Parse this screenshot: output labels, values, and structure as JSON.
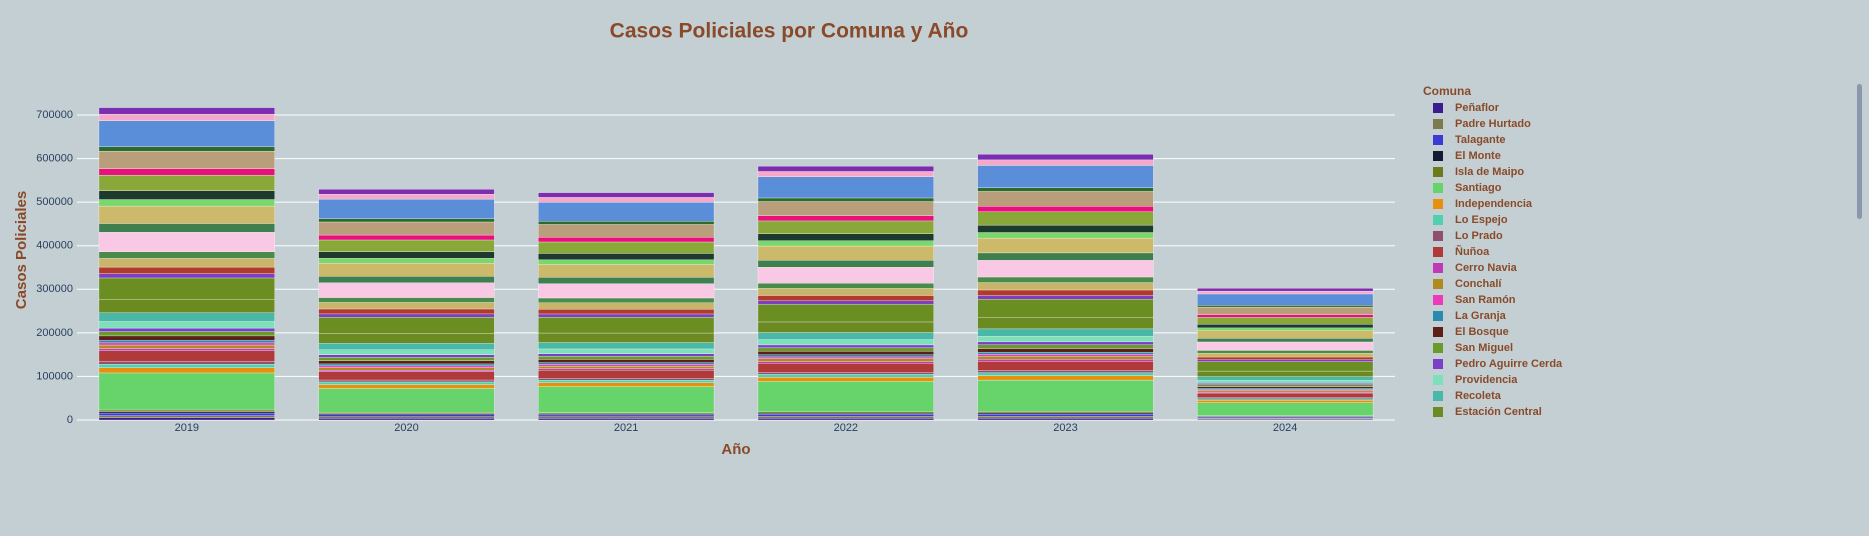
{
  "chart_data": {
    "type": "bar",
    "stacked": true,
    "title": "Casos Policiales por Comuna y Año",
    "x_label": "Año",
    "y_label": "Casos Policiales",
    "legend_title": "Comuna",
    "categories": [
      "2019",
      "2020",
      "2021",
      "2022",
      "2023",
      "2024"
    ],
    "ylim": [
      0,
      745000
    ],
    "yticks": [
      0,
      100000,
      200000,
      300000,
      400000,
      500000,
      600000,
      700000
    ],
    "grid": true,
    "series": [
      {
        "name": "Peñaflor",
        "color": "#3b1c8c",
        "values": [
          5000,
          3800,
          3700,
          4100,
          4300,
          2200
        ]
      },
      {
        "name": "Padre Hurtado",
        "color": "#7d7a4e",
        "values": [
          5000,
          3700,
          3600,
          4000,
          4200,
          2100
        ]
      },
      {
        "name": "Talagante",
        "color": "#3a3ad6",
        "values": [
          6000,
          4500,
          4400,
          4900,
          5100,
          2600
        ]
      },
      {
        "name": "El Monte",
        "color": "#141b33",
        "values": [
          3000,
          2300,
          2200,
          2400,
          2600,
          1300
        ]
      },
      {
        "name": "Isla de Maipo",
        "color": "#6b7a1a",
        "values": [
          4000,
          3000,
          2900,
          3200,
          3400,
          1700
        ]
      },
      {
        "name": "Santiago",
        "color": "#66d46a",
        "values": [
          85000,
          55000,
          60000,
          70000,
          72000,
          30000
        ]
      },
      {
        "name": "Independencia",
        "color": "#e8900c",
        "values": [
          12000,
          9000,
          8800,
          9700,
          10200,
          5200
        ]
      },
      {
        "name": "Lo Espejo",
        "color": "#4fd1b0",
        "values": [
          8000,
          6000,
          5800,
          6500,
          6800,
          3400
        ]
      },
      {
        "name": "Lo Prado",
        "color": "#8f5070",
        "values": [
          6000,
          4500,
          4400,
          4900,
          5100,
          2600
        ]
      },
      {
        "name": "Ñuñoa",
        "color": "#b03a3a",
        "values": [
          25000,
          18800,
          18300,
          20300,
          21300,
          10800
        ]
      },
      {
        "name": "Cerro Navia",
        "color": "#c03ab8",
        "values": [
          5000,
          3800,
          3700,
          4100,
          4300,
          2200
        ]
      },
      {
        "name": "Conchalí",
        "color": "#b08a1e",
        "values": [
          8000,
          6000,
          5800,
          6500,
          6800,
          3400
        ]
      },
      {
        "name": "San Ramón",
        "color": "#ee3aba",
        "values": [
          5000,
          3800,
          3700,
          4100,
          4300,
          2200
        ]
      },
      {
        "name": "La Granja",
        "color": "#2a8ab0",
        "values": [
          6000,
          4500,
          4400,
          4900,
          5100,
          2600
        ]
      },
      {
        "name": "El Bosque",
        "color": "#5c2018",
        "values": [
          10000,
          7500,
          7300,
          8100,
          8500,
          4300
        ]
      },
      {
        "name": "San Miguel",
        "color": "#6a9a2a",
        "values": [
          10000,
          7500,
          7300,
          8100,
          8500,
          4300
        ]
      },
      {
        "name": "Pedro Aguirre Cerda",
        "color": "#7a3fc8",
        "values": [
          8000,
          6000,
          5800,
          6500,
          6800,
          3400
        ]
      },
      {
        "name": "Providencia",
        "color": "#7ee0b8",
        "values": [
          15000,
          11300,
          11000,
          12200,
          12800,
          6500
        ]
      },
      {
        "name": "Recoleta",
        "color": "#4ab8a8",
        "values": [
          20000,
          15000,
          14600,
          16200,
          17000,
          8600
        ]
      },
      {
        "name": "Estación Central",
        "color": "#6b8a22",
        "values": [
          30000,
          22500,
          21900,
          24300,
          25500,
          12900
        ]
      },
      {
        "color": "#6b8e23",
        "values": [
          50000,
          37500,
          36500,
          40500,
          42500,
          21500
        ]
      },
      {
        "color": "#7b3fbf",
        "values": [
          10000,
          7500,
          7300,
          8100,
          8500,
          4300
        ]
      },
      {
        "color": "#b03a2e",
        "values": [
          15000,
          11300,
          11000,
          12200,
          12800,
          6500
        ]
      },
      {
        "color": "#c9b56a",
        "values": [
          20000,
          15000,
          14600,
          16200,
          17000,
          8600
        ]
      },
      {
        "color": "#4a8a4a",
        "values": [
          15000,
          11300,
          11000,
          12200,
          12800,
          6500
        ]
      },
      {
        "color": "#f9c8e4",
        "values": [
          45000,
          33800,
          32900,
          36500,
          38300,
          19400
        ]
      },
      {
        "color": "#3f7f4f",
        "values": [
          20000,
          15000,
          14600,
          16200,
          17000,
          8600
        ]
      },
      {
        "color": "#cdb96a",
        "values": [
          40000,
          30000,
          29200,
          32400,
          34000,
          17200
        ]
      },
      {
        "color": "#78d86a",
        "values": [
          15000,
          11300,
          11000,
          12200,
          12800,
          6500
        ]
      },
      {
        "color": "#1e3a2e",
        "values": [
          20000,
          15000,
          14600,
          16200,
          17000,
          8600
        ]
      },
      {
        "color": "#8aa83a",
        "values": [
          36000,
          27000,
          26300,
          29200,
          30600,
          15500
        ]
      },
      {
        "color": "#e8107c",
        "values": [
          15000,
          11300,
          11000,
          12200,
          12800,
          6500
        ]
      },
      {
        "color": "#b89e7a",
        "values": [
          40000,
          30000,
          29200,
          32400,
          34000,
          17200
        ]
      },
      {
        "color": "#2d6b2d",
        "values": [
          10000,
          7500,
          7300,
          8100,
          8500,
          4300
        ]
      },
      {
        "color": "#5b8ed8",
        "values": [
          60000,
          45000,
          43800,
          48600,
          51000,
          25800
        ]
      },
      {
        "color": "#f5a8c8",
        "values": [
          15000,
          11300,
          11000,
          12200,
          12800,
          6500
        ]
      },
      {
        "color": "#7b2fb0",
        "values": [
          15000,
          11300,
          11000,
          12200,
          12800,
          6500
        ]
      }
    ]
  }
}
